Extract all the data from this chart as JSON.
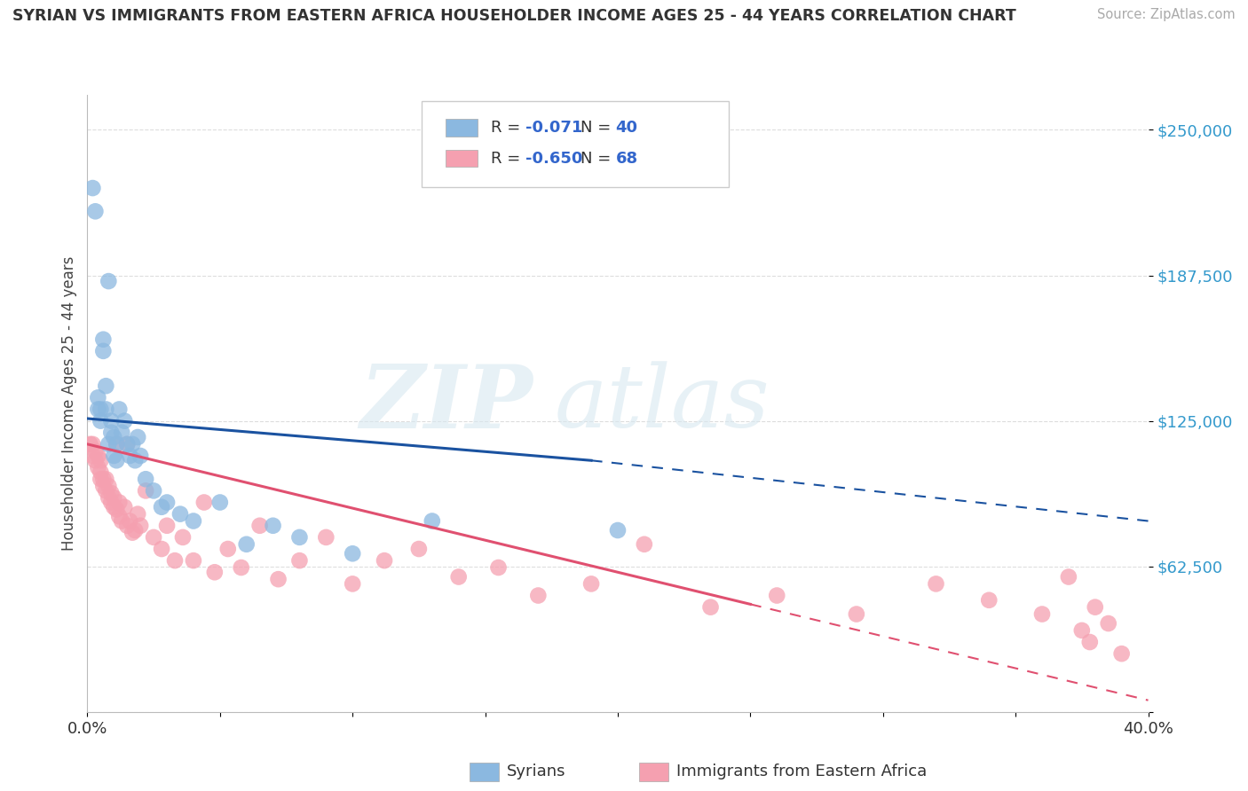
{
  "title": "SYRIAN VS IMMIGRANTS FROM EASTERN AFRICA HOUSEHOLDER INCOME AGES 25 - 44 YEARS CORRELATION CHART",
  "source": "Source: ZipAtlas.com",
  "ylabel": "Householder Income Ages 25 - 44 years",
  "xlim": [
    0.0,
    0.4
  ],
  "ylim": [
    0,
    265000
  ],
  "yticks": [
    0,
    62500,
    125000,
    187500,
    250000
  ],
  "ytick_labels": [
    "",
    "$62,500",
    "$125,000",
    "$187,500",
    "$250,000"
  ],
  "xtick_positions": [
    0.0,
    0.05,
    0.1,
    0.15,
    0.2,
    0.25,
    0.3,
    0.35,
    0.4
  ],
  "xtick_labels": [
    "0.0%",
    "",
    "",
    "",
    "",
    "",
    "",
    "",
    "40.0%"
  ],
  "background_color": "#ffffff",
  "watermark_zip": "ZIP",
  "watermark_atlas": "atlas",
  "legend_R1": "-0.071",
  "legend_N1": "40",
  "legend_R2": "-0.650",
  "legend_N2": "68",
  "color_syrian": "#8bb8e0",
  "color_eastern_africa": "#f5a0b0",
  "color_line_syrian": "#1a52a0",
  "color_line_eastern_africa": "#e05070",
  "color_ytick": "#3399cc",
  "color_xtick": "#333333",
  "grid_color": "#dddddd",
  "syrian_x": [
    0.002,
    0.003,
    0.004,
    0.004,
    0.005,
    0.005,
    0.006,
    0.006,
    0.007,
    0.007,
    0.008,
    0.008,
    0.009,
    0.009,
    0.01,
    0.01,
    0.011,
    0.011,
    0.012,
    0.013,
    0.014,
    0.015,
    0.016,
    0.017,
    0.018,
    0.019,
    0.02,
    0.022,
    0.025,
    0.028,
    0.03,
    0.035,
    0.04,
    0.05,
    0.06,
    0.07,
    0.08,
    0.1,
    0.13,
    0.2
  ],
  "syrian_y": [
    225000,
    215000,
    135000,
    130000,
    130000,
    125000,
    160000,
    155000,
    140000,
    130000,
    185000,
    115000,
    125000,
    120000,
    118000,
    110000,
    115000,
    108000,
    130000,
    120000,
    125000,
    115000,
    110000,
    115000,
    108000,
    118000,
    110000,
    100000,
    95000,
    88000,
    90000,
    85000,
    82000,
    90000,
    72000,
    80000,
    75000,
    68000,
    82000,
    78000
  ],
  "eastern_africa_x": [
    0.001,
    0.002,
    0.002,
    0.003,
    0.003,
    0.004,
    0.004,
    0.005,
    0.005,
    0.005,
    0.006,
    0.006,
    0.007,
    0.007,
    0.008,
    0.008,
    0.009,
    0.009,
    0.01,
    0.01,
    0.011,
    0.011,
    0.012,
    0.012,
    0.013,
    0.014,
    0.015,
    0.015,
    0.016,
    0.017,
    0.018,
    0.019,
    0.02,
    0.022,
    0.025,
    0.028,
    0.03,
    0.033,
    0.036,
    0.04,
    0.044,
    0.048,
    0.053,
    0.058,
    0.065,
    0.072,
    0.08,
    0.09,
    0.1,
    0.112,
    0.125,
    0.14,
    0.155,
    0.17,
    0.19,
    0.21,
    0.235,
    0.26,
    0.29,
    0.32,
    0.34,
    0.36,
    0.37,
    0.375,
    0.378,
    0.38,
    0.385,
    0.39
  ],
  "eastern_africa_y": [
    115000,
    115000,
    110000,
    112000,
    108000,
    110000,
    105000,
    108000,
    103000,
    100000,
    100000,
    97000,
    95000,
    100000,
    92000,
    97000,
    90000,
    94000,
    88000,
    92000,
    115000,
    87000,
    84000,
    90000,
    82000,
    88000,
    115000,
    80000,
    82000,
    77000,
    78000,
    85000,
    80000,
    95000,
    75000,
    70000,
    80000,
    65000,
    75000,
    65000,
    90000,
    60000,
    70000,
    62000,
    80000,
    57000,
    65000,
    75000,
    55000,
    65000,
    70000,
    58000,
    62000,
    50000,
    55000,
    72000,
    45000,
    50000,
    42000,
    55000,
    48000,
    42000,
    58000,
    35000,
    30000,
    45000,
    38000,
    25000
  ],
  "line_syrian_x0": 0.0,
  "line_syrian_y0": 126000,
  "line_syrian_x1": 0.19,
  "line_syrian_y1": 108000,
  "line_syrian_dash_x1": 0.4,
  "line_syrian_dash_y1": 82000,
  "line_ea_x0": 0.0,
  "line_ea_y0": 115000,
  "line_ea_x1": 0.25,
  "line_ea_y1": 65000,
  "line_ea_solid_end": 0.25,
  "line_ea_dash_x1": 0.4,
  "line_ea_dash_y1": 5000
}
